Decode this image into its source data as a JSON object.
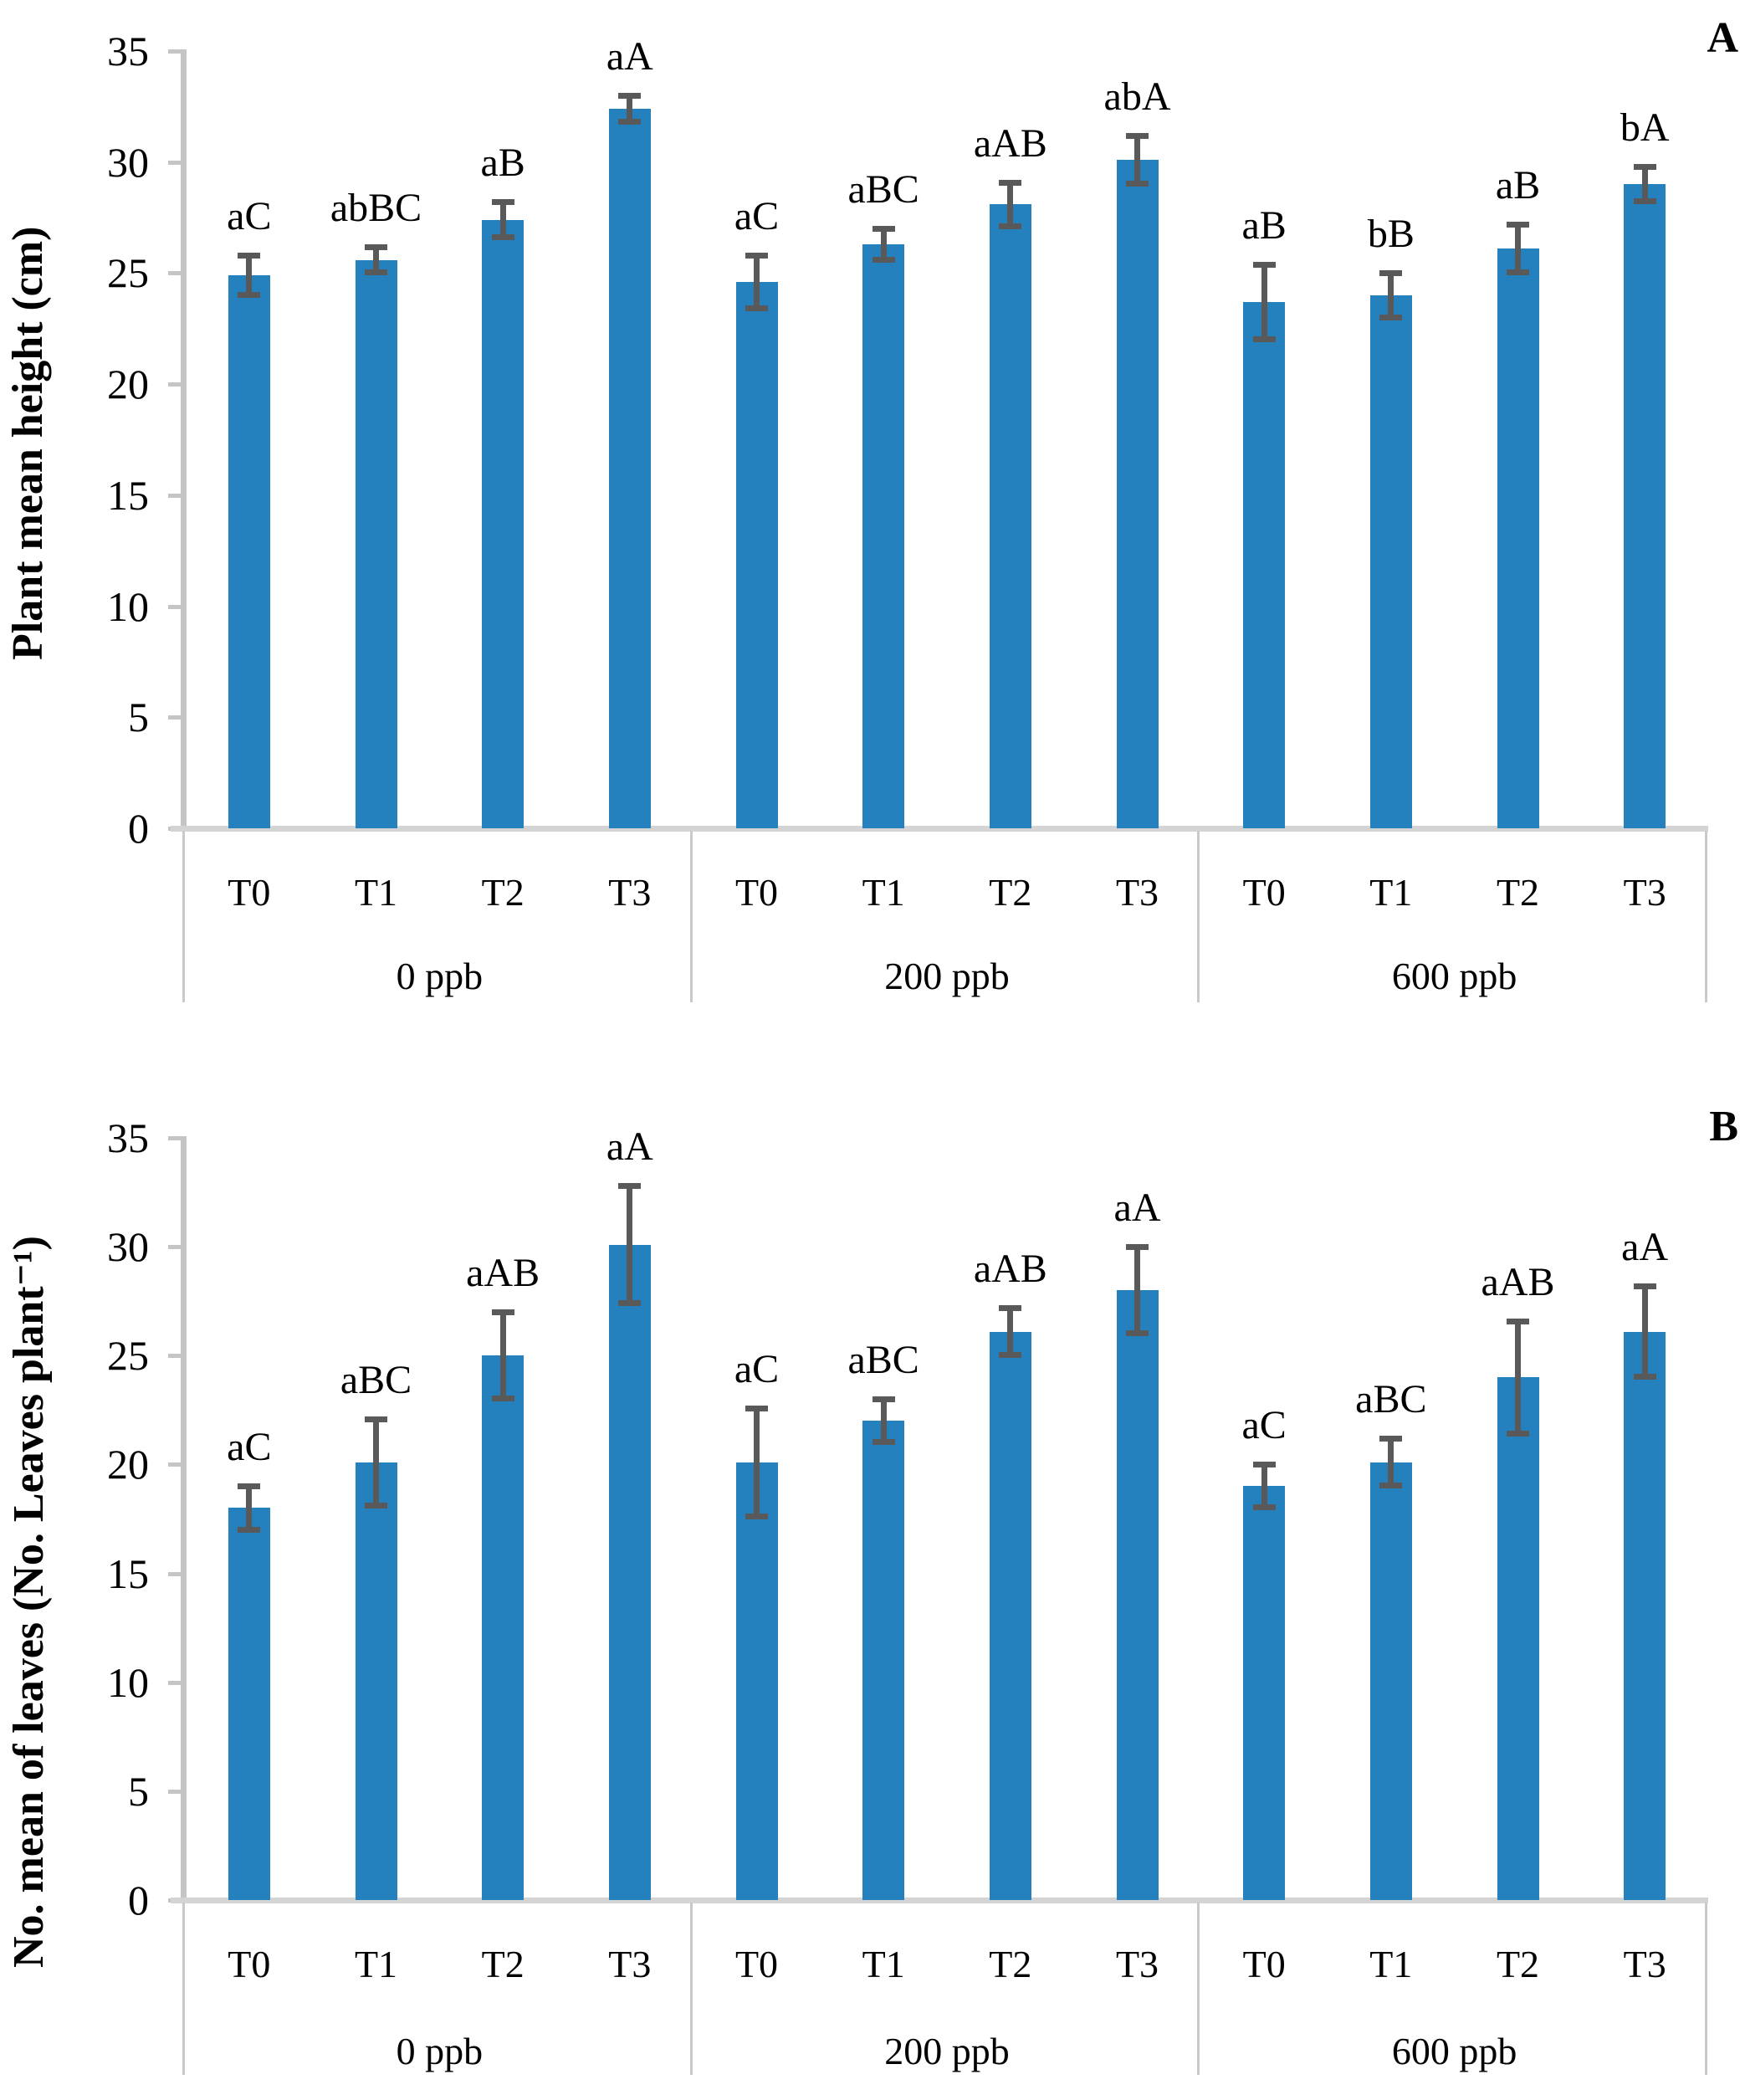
{
  "figure": {
    "background": "#ffffff"
  },
  "colors": {
    "bar": "#2581BE",
    "error_bar": "#595959",
    "axis_line": "#C5C5C5",
    "baseline": "#D4D4D4",
    "separator": "#C9C9C9",
    "text": "#000000"
  },
  "chart_data": [
    {
      "type": "bar",
      "panel_label": "A",
      "title": "",
      "ylabel": "Plant mean height (cm)",
      "xlabel": "",
      "ylim": [
        0,
        35
      ],
      "yticks": [
        "0",
        "5",
        "10",
        "15",
        "20",
        "25",
        "30",
        "35"
      ],
      "grid": false,
      "legend": "none",
      "categories": [
        "T0",
        "T1",
        "T2",
        "T3"
      ],
      "groups": [
        {
          "label": "0 ppb",
          "values": [
            24.9,
            25.6,
            27.4,
            32.4
          ],
          "errors": [
            0.9,
            0.6,
            0.8,
            0.6
          ],
          "annotations": [
            "aC",
            "abBC",
            "aB",
            "aA"
          ]
        },
        {
          "label": "200 ppb",
          "values": [
            24.6,
            26.3,
            28.1,
            30.1
          ],
          "errors": [
            1.2,
            0.7,
            1.0,
            1.1
          ],
          "annotations": [
            "aC",
            "aBC",
            "aAB",
            "abA"
          ]
        },
        {
          "label": "600 ppb",
          "values": [
            23.7,
            24.0,
            26.1,
            29.0
          ],
          "errors": [
            1.7,
            1.0,
            1.1,
            0.8
          ],
          "annotations": [
            "aB",
            "bB",
            "aB",
            "bA"
          ]
        }
      ]
    },
    {
      "type": "bar",
      "panel_label": "B",
      "title": "",
      "ylabel": "No. mean of leaves (No. Leaves plant⁻¹)",
      "xlabel": "",
      "ylim": [
        0,
        35
      ],
      "yticks": [
        "0",
        "5",
        "10",
        "15",
        "20",
        "25",
        "30",
        "35"
      ],
      "grid": false,
      "legend": "none",
      "categories": [
        "T0",
        "T1",
        "T2",
        "T3"
      ],
      "groups": [
        {
          "label": "0 ppb",
          "values": [
            18.0,
            20.1,
            25.0,
            30.1
          ],
          "errors": [
            1.0,
            2.0,
            2.0,
            2.7
          ],
          "annotations": [
            "aC",
            "aBC",
            "aAB",
            "aA"
          ]
        },
        {
          "label": "200 ppb",
          "values": [
            20.1,
            22.0,
            26.1,
            28.0
          ],
          "errors": [
            2.5,
            1.0,
            1.1,
            2.0
          ],
          "annotations": [
            "aC",
            "aBC",
            "aAB",
            "aA"
          ]
        },
        {
          "label": "600 ppb",
          "values": [
            19.0,
            20.1,
            24.0,
            26.1
          ],
          "errors": [
            1.0,
            1.1,
            2.6,
            2.1
          ],
          "annotations": [
            "aC",
            "aBC",
            "aAB",
            "aA"
          ]
        }
      ]
    }
  ]
}
